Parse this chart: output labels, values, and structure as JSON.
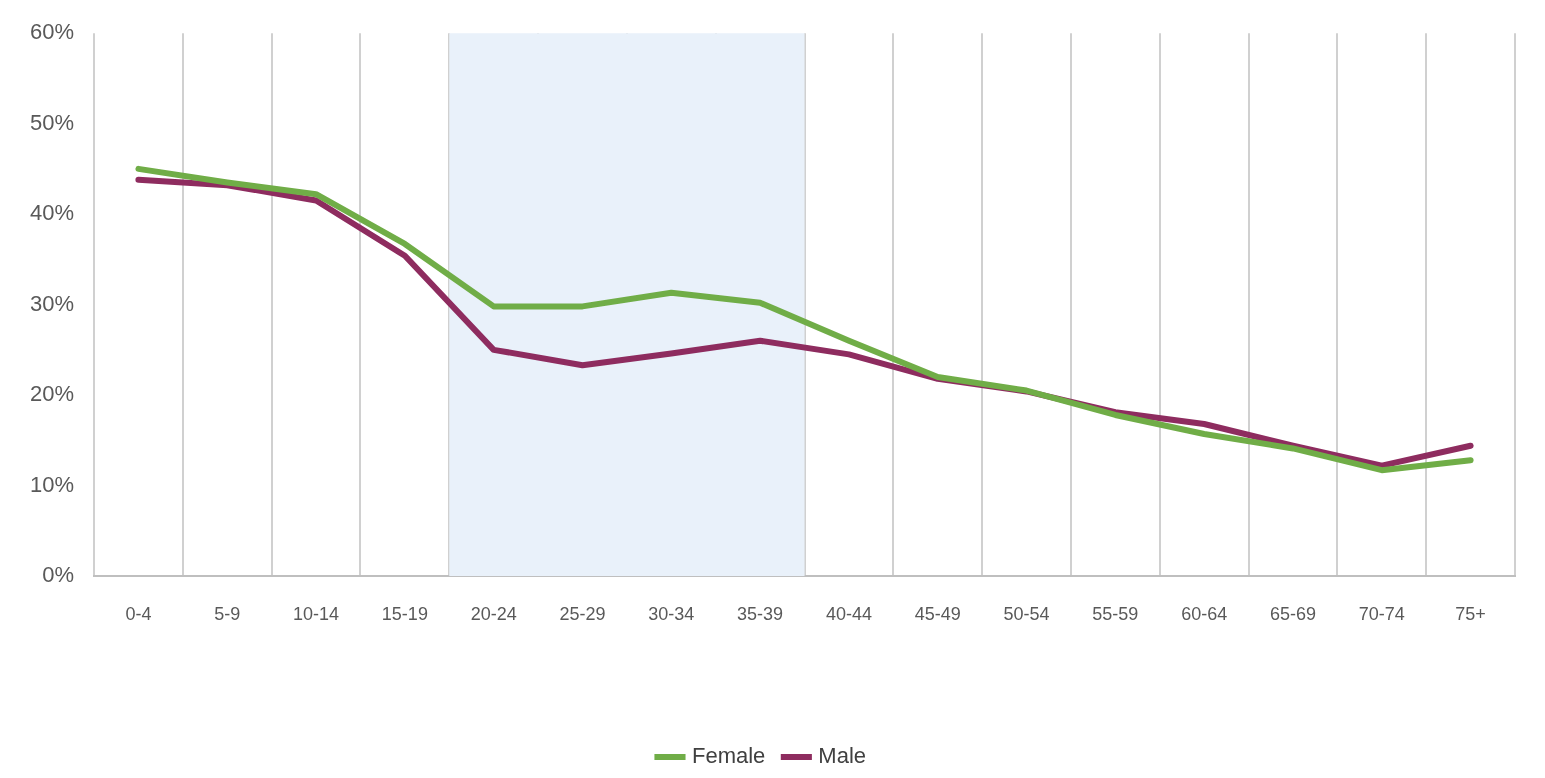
{
  "chart_data": {
    "type": "line",
    "categories": [
      "0-4",
      "5-9",
      "10-14",
      "15-19",
      "20-24",
      "25-29",
      "30-34",
      "35-39",
      "40-44",
      "45-49",
      "50-54",
      "55-59",
      "60-64",
      "65-69",
      "70-74",
      "75+"
    ],
    "series": [
      {
        "name": "Female",
        "color": "#70ad47",
        "values": [
          45.0,
          43.5,
          42.2,
          36.7,
          29.8,
          29.8,
          31.3,
          30.2,
          26.0,
          22.0,
          20.5,
          17.8,
          15.7,
          14.1,
          11.7,
          12.8
        ]
      },
      {
        "name": "Male",
        "color": "#8e2c5f",
        "values": [
          43.8,
          43.2,
          41.5,
          35.4,
          25.0,
          23.3,
          24.6,
          26.0,
          24.5,
          21.8,
          20.4,
          18.1,
          16.8,
          14.4,
          12.2,
          14.4
        ]
      }
    ],
    "ylim": [
      0,
      60
    ],
    "yticks": [
      {
        "value": 0,
        "label": "0%"
      },
      {
        "value": 10,
        "label": "10%"
      },
      {
        "value": 20,
        "label": "20%"
      },
      {
        "value": 30,
        "label": "30%"
      },
      {
        "value": 40,
        "label": "40%"
      },
      {
        "value": 50,
        "label": "50%"
      },
      {
        "value": 60,
        "label": "60%"
      }
    ],
    "grid": "x",
    "legend": "bottom",
    "marker": "none",
    "line_style": "solid",
    "bands": [
      {
        "axis": "x",
        "from": "20-24",
        "to": "35-39",
        "color": "#e9f1fa"
      }
    ]
  }
}
